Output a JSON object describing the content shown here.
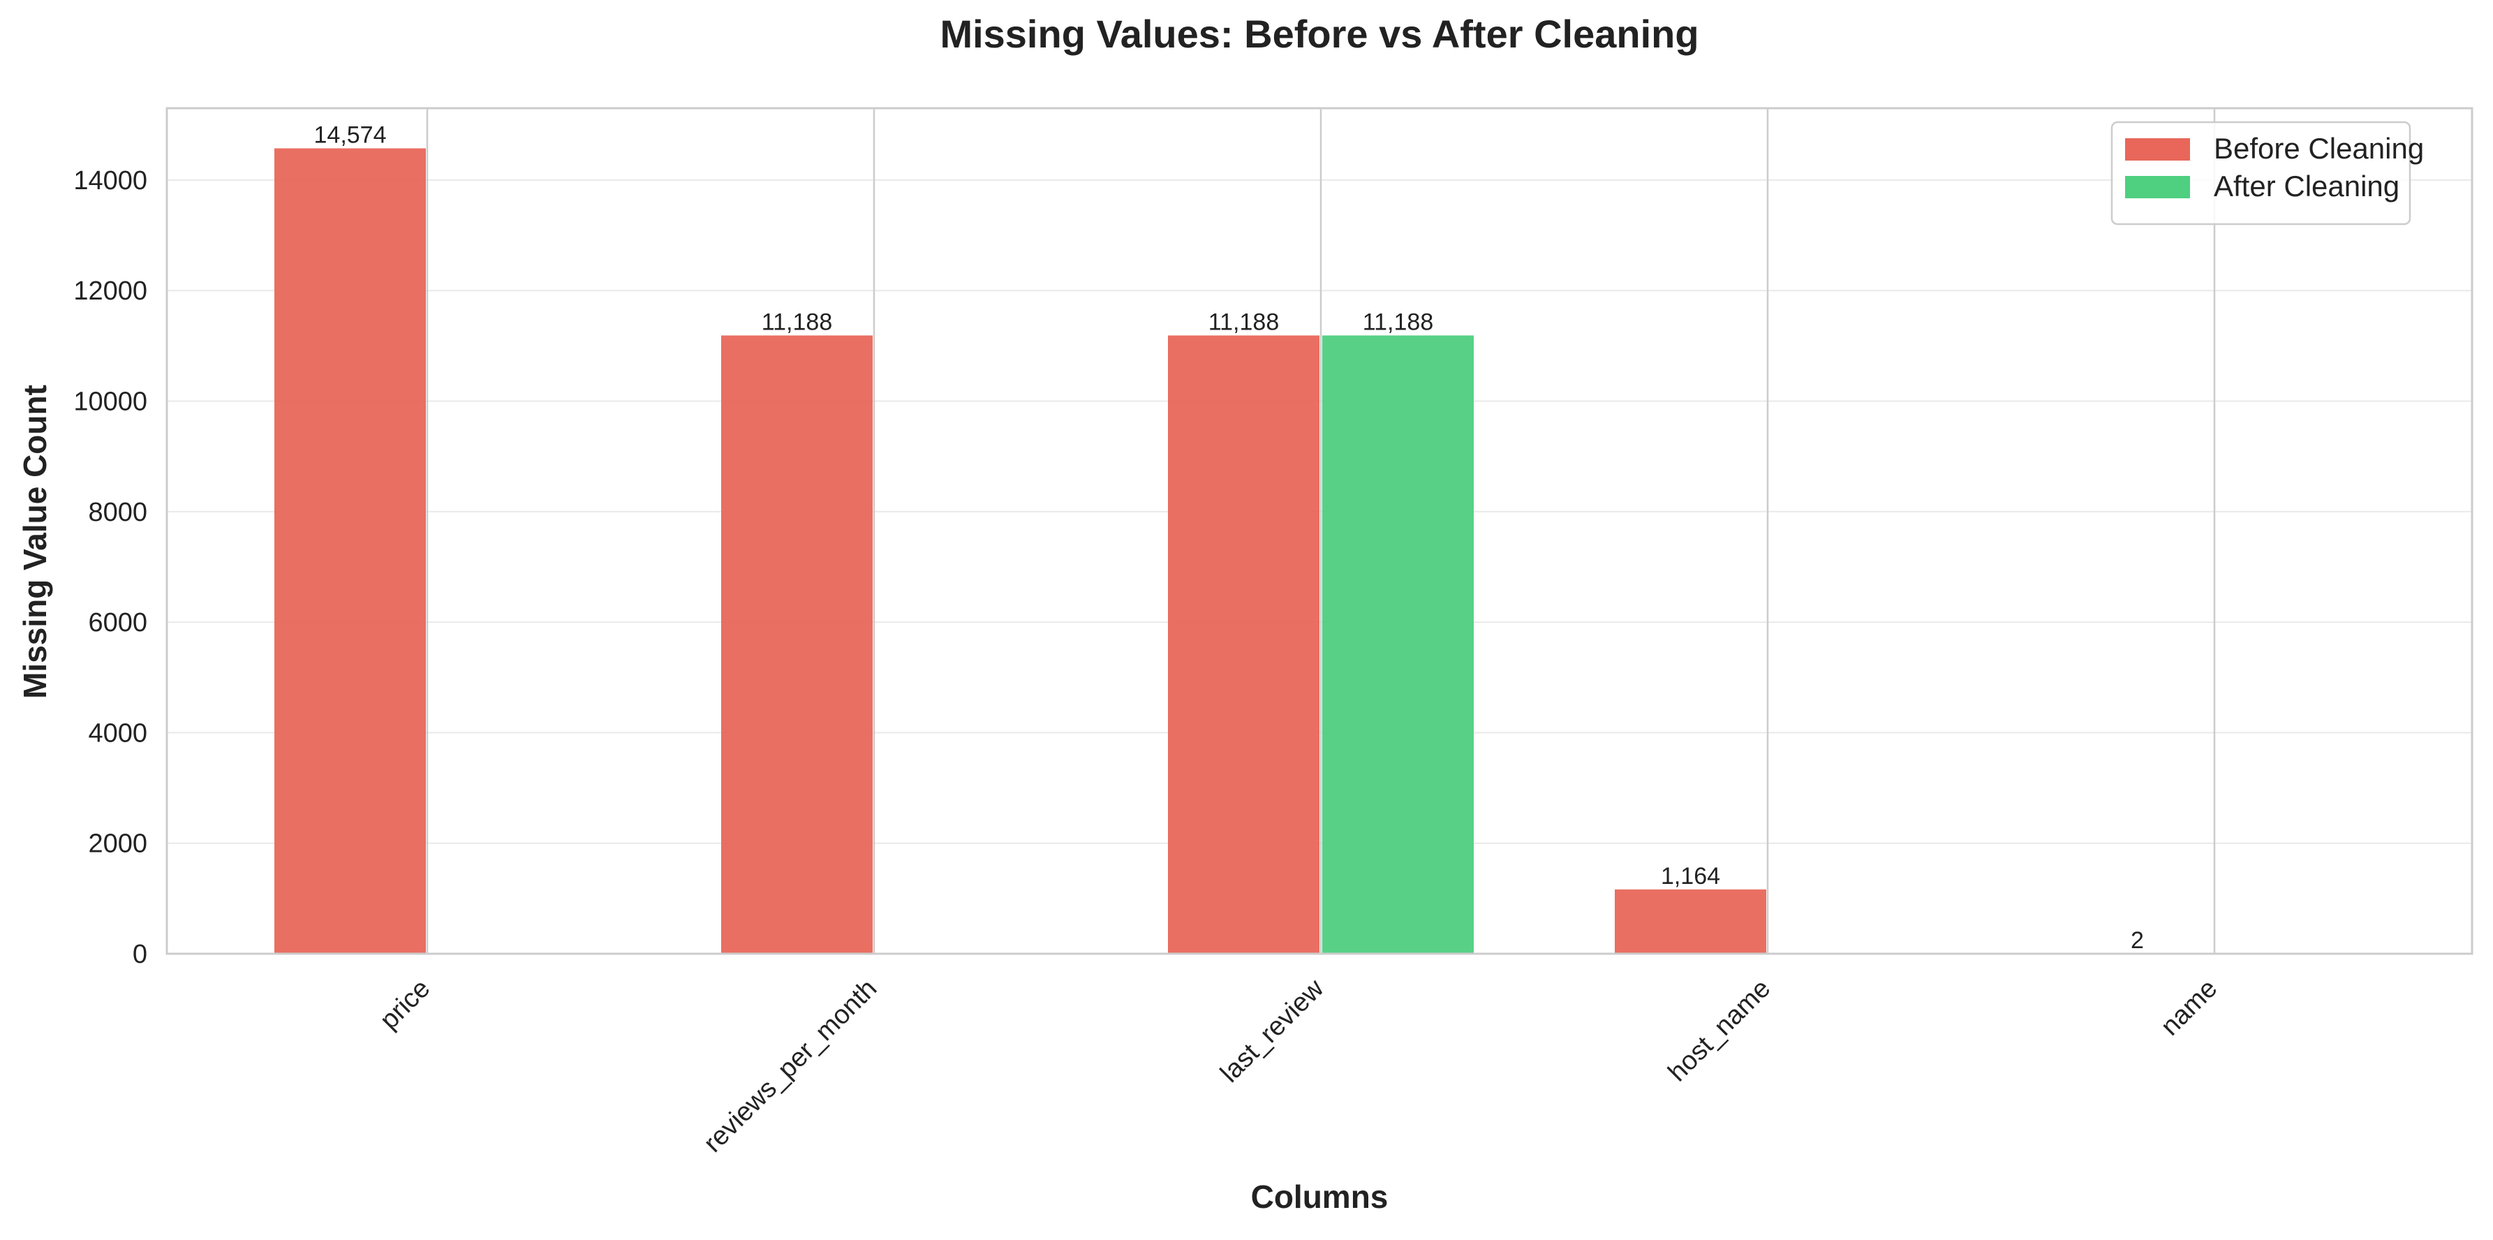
{
  "chart_data": {
    "type": "bar",
    "title": "Missing Values: Before vs After Cleaning",
    "xlabel": "Columns",
    "ylabel": "Missing Value Count",
    "categories": [
      "price",
      "reviews_per_month",
      "last_review",
      "host_name",
      "name"
    ],
    "series": [
      {
        "name": "Before Cleaning",
        "color": "#e8675a",
        "values": [
          14574,
          11188,
          11188,
          1164,
          2
        ],
        "labels": [
          "14,574",
          "11,188",
          "11,188",
          "1,164",
          "2"
        ]
      },
      {
        "name": "After Cleaning",
        "color": "#4fcf80",
        "values": [
          0,
          0,
          11188,
          0,
          0
        ],
        "labels": [
          "",
          "",
          "11,188",
          "",
          ""
        ]
      }
    ],
    "yticks": [
      "0",
      "2000",
      "4000",
      "6000",
      "8000",
      "10000",
      "12000",
      "14000"
    ],
    "ylim": [
      0,
      15300
    ],
    "grid": true,
    "legend_position": "top-right"
  }
}
